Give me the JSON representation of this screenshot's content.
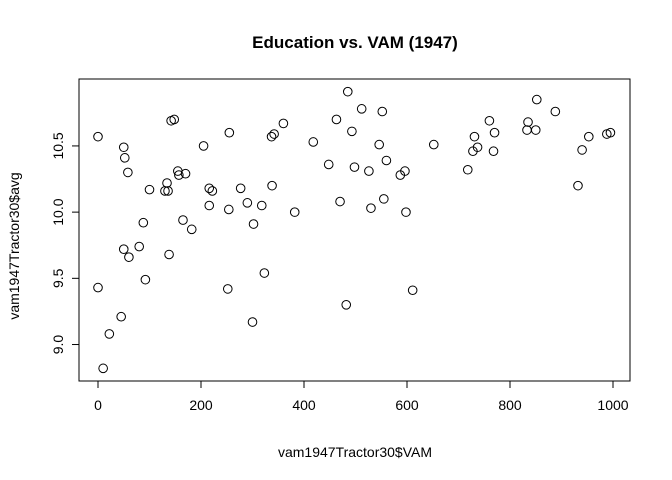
{
  "chart_data": {
    "type": "scatter",
    "title": "Education vs. VAM (1947)",
    "xlabel": "vam1947Tractor30$VAM",
    "ylabel": "vam1947Tractor30$avg",
    "xlim": [
      0,
      1000
    ],
    "ylim": [
      8.8,
      10.93
    ],
    "xticks": [
      "0",
      "200",
      "400",
      "600",
      "800",
      "1000"
    ],
    "yticks": [
      "9.0",
      "9.5",
      "10.0",
      "10.5"
    ],
    "xtick_values": [
      0,
      200,
      400,
      600,
      800,
      1000
    ],
    "ytick_values": [
      9.0,
      9.5,
      10.0,
      10.5
    ],
    "grid": false,
    "marker": "open-circle",
    "points": [
      {
        "x": 0,
        "y": 10.57
      },
      {
        "x": 0,
        "y": 9.43
      },
      {
        "x": 10,
        "y": 8.82
      },
      {
        "x": 22,
        "y": 9.08
      },
      {
        "x": 45,
        "y": 9.21
      },
      {
        "x": 50,
        "y": 10.49
      },
      {
        "x": 52,
        "y": 10.41
      },
      {
        "x": 58,
        "y": 10.3
      },
      {
        "x": 50,
        "y": 9.72
      },
      {
        "x": 60,
        "y": 9.66
      },
      {
        "x": 80,
        "y": 9.74
      },
      {
        "x": 88,
        "y": 9.92
      },
      {
        "x": 92,
        "y": 9.49
      },
      {
        "x": 100,
        "y": 10.17
      },
      {
        "x": 130,
        "y": 10.16
      },
      {
        "x": 134,
        "y": 10.22
      },
      {
        "x": 136,
        "y": 10.16
      },
      {
        "x": 138,
        "y": 9.68
      },
      {
        "x": 142,
        "y": 10.69
      },
      {
        "x": 148,
        "y": 10.7
      },
      {
        "x": 155,
        "y": 10.31
      },
      {
        "x": 157,
        "y": 10.28
      },
      {
        "x": 165,
        "y": 9.94
      },
      {
        "x": 170,
        "y": 10.29
      },
      {
        "x": 182,
        "y": 9.87
      },
      {
        "x": 205,
        "y": 10.5
      },
      {
        "x": 216,
        "y": 10.18
      },
      {
        "x": 216,
        "y": 10.05
      },
      {
        "x": 222,
        "y": 10.16
      },
      {
        "x": 252,
        "y": 9.42
      },
      {
        "x": 254,
        "y": 10.02
      },
      {
        "x": 255,
        "y": 10.6
      },
      {
        "x": 277,
        "y": 10.18
      },
      {
        "x": 290,
        "y": 10.07
      },
      {
        "x": 300,
        "y": 9.17
      },
      {
        "x": 302,
        "y": 9.91
      },
      {
        "x": 318,
        "y": 10.05
      },
      {
        "x": 323,
        "y": 9.54
      },
      {
        "x": 337,
        "y": 10.57
      },
      {
        "x": 338,
        "y": 10.2
      },
      {
        "x": 342,
        "y": 10.59
      },
      {
        "x": 360,
        "y": 10.67
      },
      {
        "x": 382,
        "y": 10.0
      },
      {
        "x": 418,
        "y": 10.53
      },
      {
        "x": 448,
        "y": 10.36
      },
      {
        "x": 463,
        "y": 10.7
      },
      {
        "x": 470,
        "y": 10.08
      },
      {
        "x": 482,
        "y": 9.3
      },
      {
        "x": 485,
        "y": 10.91
      },
      {
        "x": 493,
        "y": 10.61
      },
      {
        "x": 498,
        "y": 10.34
      },
      {
        "x": 512,
        "y": 10.78
      },
      {
        "x": 526,
        "y": 10.31
      },
      {
        "x": 530,
        "y": 10.03
      },
      {
        "x": 546,
        "y": 10.51
      },
      {
        "x": 552,
        "y": 10.76
      },
      {
        "x": 555,
        "y": 10.1
      },
      {
        "x": 560,
        "y": 10.39
      },
      {
        "x": 587,
        "y": 10.28
      },
      {
        "x": 596,
        "y": 10.31
      },
      {
        "x": 598,
        "y": 10.0
      },
      {
        "x": 611,
        "y": 9.41
      },
      {
        "x": 652,
        "y": 10.51
      },
      {
        "x": 718,
        "y": 10.32
      },
      {
        "x": 728,
        "y": 10.46
      },
      {
        "x": 731,
        "y": 10.57
      },
      {
        "x": 737,
        "y": 10.49
      },
      {
        "x": 760,
        "y": 10.69
      },
      {
        "x": 768,
        "y": 10.46
      },
      {
        "x": 770,
        "y": 10.6
      },
      {
        "x": 833,
        "y": 10.62
      },
      {
        "x": 835,
        "y": 10.68
      },
      {
        "x": 850,
        "y": 10.62
      },
      {
        "x": 852,
        "y": 10.85
      },
      {
        "x": 888,
        "y": 10.76
      },
      {
        "x": 932,
        "y": 10.2
      },
      {
        "x": 940,
        "y": 10.47
      },
      {
        "x": 953,
        "y": 10.57
      },
      {
        "x": 988,
        "y": 10.59
      },
      {
        "x": 995,
        "y": 10.6
      }
    ]
  }
}
